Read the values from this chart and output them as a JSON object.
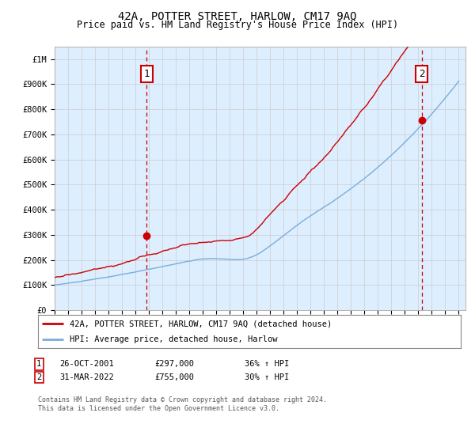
{
  "title": "42A, POTTER STREET, HARLOW, CM17 9AQ",
  "subtitle": "Price paid vs. HM Land Registry's House Price Index (HPI)",
  "title_fontsize": 10,
  "subtitle_fontsize": 8.5,
  "ylabel_ticks": [
    "£0",
    "£100K",
    "£200K",
    "£300K",
    "£400K",
    "£500K",
    "£600K",
    "£700K",
    "£800K",
    "£900K",
    "£1M"
  ],
  "ytick_values": [
    0,
    100000,
    200000,
    300000,
    400000,
    500000,
    600000,
    700000,
    800000,
    900000,
    1000000
  ],
  "ylim": [
    0,
    1050000
  ],
  "hpi_color": "#7aaddc",
  "price_color": "#cc0000",
  "bg_plot_color": "#ddeeff",
  "vline_color": "#cc0000",
  "sale1_year": 2001.82,
  "sale1_price": 297000,
  "sale1_label": "1",
  "sale1_date": "26-OCT-2001",
  "sale1_pct": "36% ↑ HPI",
  "sale2_year": 2022.25,
  "sale2_price": 755000,
  "sale2_label": "2",
  "sale2_date": "31-MAR-2022",
  "sale2_pct": "30% ↑ HPI",
  "legend_label1": "42A, POTTER STREET, HARLOW, CM17 9AQ (detached house)",
  "legend_label2": "HPI: Average price, detached house, Harlow",
  "footnote": "Contains HM Land Registry data © Crown copyright and database right 2024.\nThis data is licensed under the Open Government Licence v3.0.",
  "background_color": "#ffffff",
  "grid_color": "#cccccc",
  "xmin": 1995,
  "xmax": 2025.5
}
